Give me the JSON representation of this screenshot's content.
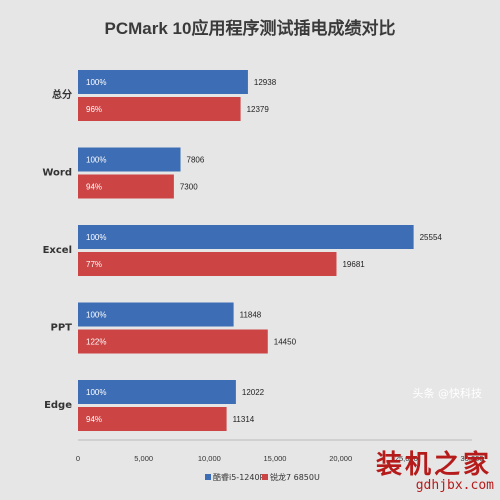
{
  "colors": {
    "intel": "#3d6db4",
    "amd": "#cc4444",
    "background": "#e6e6e6"
  },
  "watermarks": {
    "toutiao": "头条 @快科技",
    "site": "装机之家",
    "url": "gdhjbx.com"
  },
  "chart_data": {
    "type": "bar",
    "orientation": "horizontal",
    "title": "PCMark 10应用程序测试插电成绩对比",
    "categories": [
      "总分",
      "Word",
      "Excel",
      "PPT",
      "Edge"
    ],
    "series": [
      {
        "name": "酷睿i5-1240P",
        "color": "#3d6db4",
        "values": [
          12938,
          7806,
          25554,
          11848,
          12022
        ],
        "percent_labels": [
          "100%",
          "100%",
          "100%",
          "100%",
          "100%"
        ]
      },
      {
        "name": "锐龙7 6850U",
        "color": "#cc4444",
        "values": [
          12379,
          7300,
          19681,
          14450,
          11314
        ],
        "percent_labels": [
          "96%",
          "94%",
          "77%",
          "122%",
          "94%"
        ]
      }
    ],
    "xlim": [
      0,
      30000
    ],
    "xticks": [
      "0",
      "5,000",
      "10,000",
      "15,000",
      "20,000",
      "25,000",
      "30,000"
    ],
    "grid": false,
    "legend_position": "bottom"
  }
}
